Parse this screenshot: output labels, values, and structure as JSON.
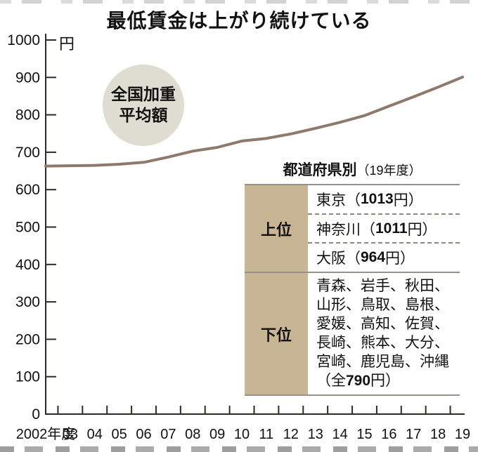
{
  "title": "最低賃金は上がり続けている",
  "chart_data": {
    "type": "line",
    "title": "最低賃金は上がり続けている",
    "unit_label": "円",
    "xlabel": "年度",
    "ylabel": "円",
    "ylim": [
      0,
      1000
    ],
    "y_ticks": [
      0,
      100,
      200,
      300,
      400,
      500,
      600,
      700,
      800,
      900,
      1000
    ],
    "x_tick_labels": [
      "2002年度",
      "03",
      "04",
      "05",
      "06",
      "07",
      "08",
      "09",
      "10",
      "11",
      "12",
      "13",
      "14",
      "15",
      "16",
      "17",
      "18",
      "19"
    ],
    "grid": false,
    "legend_position": "annotation-circle",
    "series": [
      {
        "name": "全国加重平均額",
        "values": [
          663,
          664,
          665,
          668,
          673,
          687,
          703,
          713,
          730,
          737,
          749,
          764,
          780,
          798,
          823,
          848,
          874,
          901
        ]
      }
    ],
    "line_color": "#8d7a6c",
    "axis_color": "#2e2a26"
  },
  "annotation": {
    "line1": "全国加重",
    "line2": "平均額"
  },
  "pref_table": {
    "header": {
      "bold": "都道府県別",
      "normal": "（19年度）"
    },
    "upper": {
      "label": "上位",
      "rows": [
        {
          "name": "東京",
          "open": "（",
          "amount": "1013",
          "close": "円）"
        },
        {
          "name": "神奈川",
          "open": "（",
          "amount": "1011",
          "close": "円）"
        },
        {
          "name": "大阪",
          "open": "（",
          "amount": "964",
          "close": "円）"
        }
      ]
    },
    "lower": {
      "label": "下位",
      "lines": [
        "青森、岩手、秋田、",
        "山形、鳥取、島根、",
        "愛媛、高知、佐賀、",
        "長崎、熊本、大分、",
        "宮崎、鹿児島、沖縄"
      ],
      "footer_open": "（全",
      "footer_amount": "790",
      "footer_close": "円）"
    },
    "colors": {
      "label_bg": "#c8b594",
      "border": "#96928a"
    }
  }
}
